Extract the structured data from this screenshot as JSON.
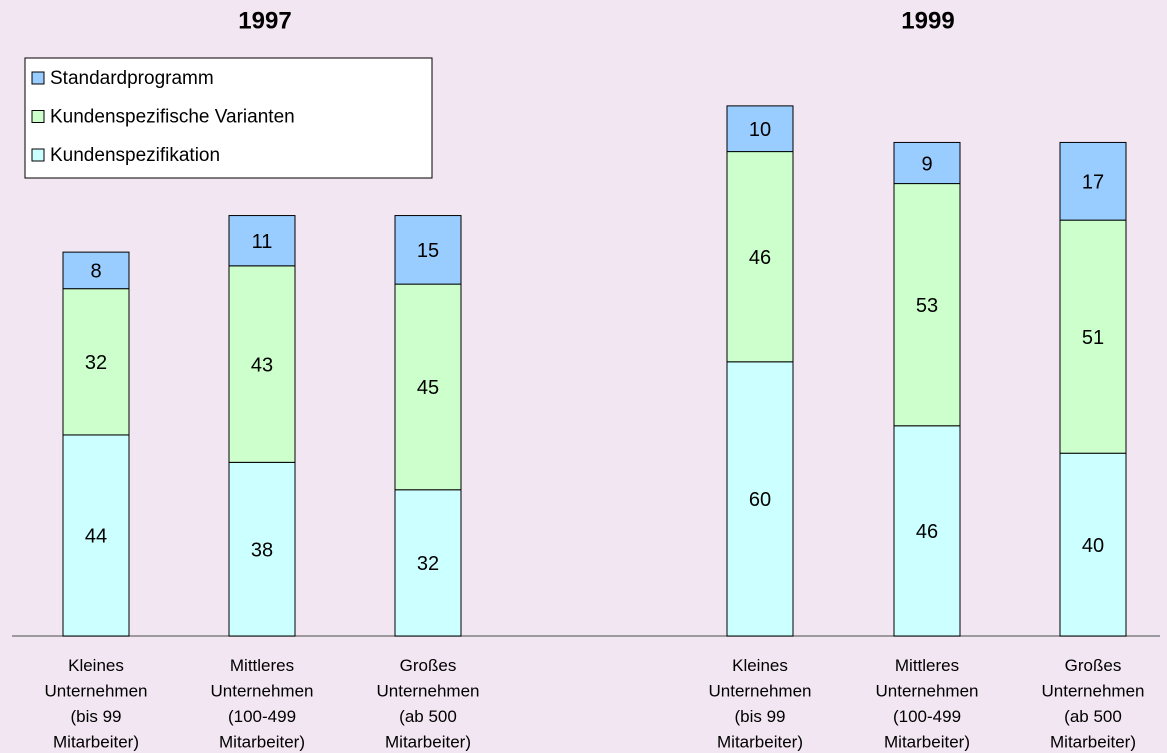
{
  "chart_data": [
    {
      "type": "stacked_bar",
      "title": "1997",
      "legend": "upper left",
      "categories": [
        "Kleines\nUnternehmen\n(bis 99\nMitarbeiter)",
        "Mittleres\nUnternehmen\n(100-499\nMitarbeiter)",
        "Großes\nUnternehmen\n(ab 500\nMitarbeiter)"
      ],
      "series": [
        {
          "name": "Standardprogramm",
          "color": "#99ccff",
          "values": [
            8,
            11,
            15
          ]
        },
        {
          "name": "Kundenspezifische Varianten",
          "color": "#ccffcc",
          "values": [
            32,
            43,
            45
          ]
        },
        {
          "name": "Kundenspezifikation",
          "color": "#ccffff",
          "values": [
            44,
            38,
            32
          ]
        }
      ]
    },
    {
      "type": "stacked_bar",
      "title": "1999",
      "categories": [
        "Kleines\nUnternehmen\n(bis 99\nMitarbeiter)",
        "Mittleres\nUnternehmen\n(100-499\nMitarbeiter)",
        "Großes\nUnternehmen\n(ab 500\nMitarbeiter)"
      ],
      "series": [
        {
          "name": "Standardprogramm",
          "color": "#99ccff",
          "values": [
            10,
            9,
            17
          ]
        },
        {
          "name": "Kundenspezifische Varianten",
          "color": "#ccffcc",
          "values": [
            46,
            53,
            51
          ]
        },
        {
          "name": "Kundenspezifikation",
          "color": "#ccffff",
          "values": [
            60,
            46,
            40
          ]
        }
      ]
    }
  ]
}
